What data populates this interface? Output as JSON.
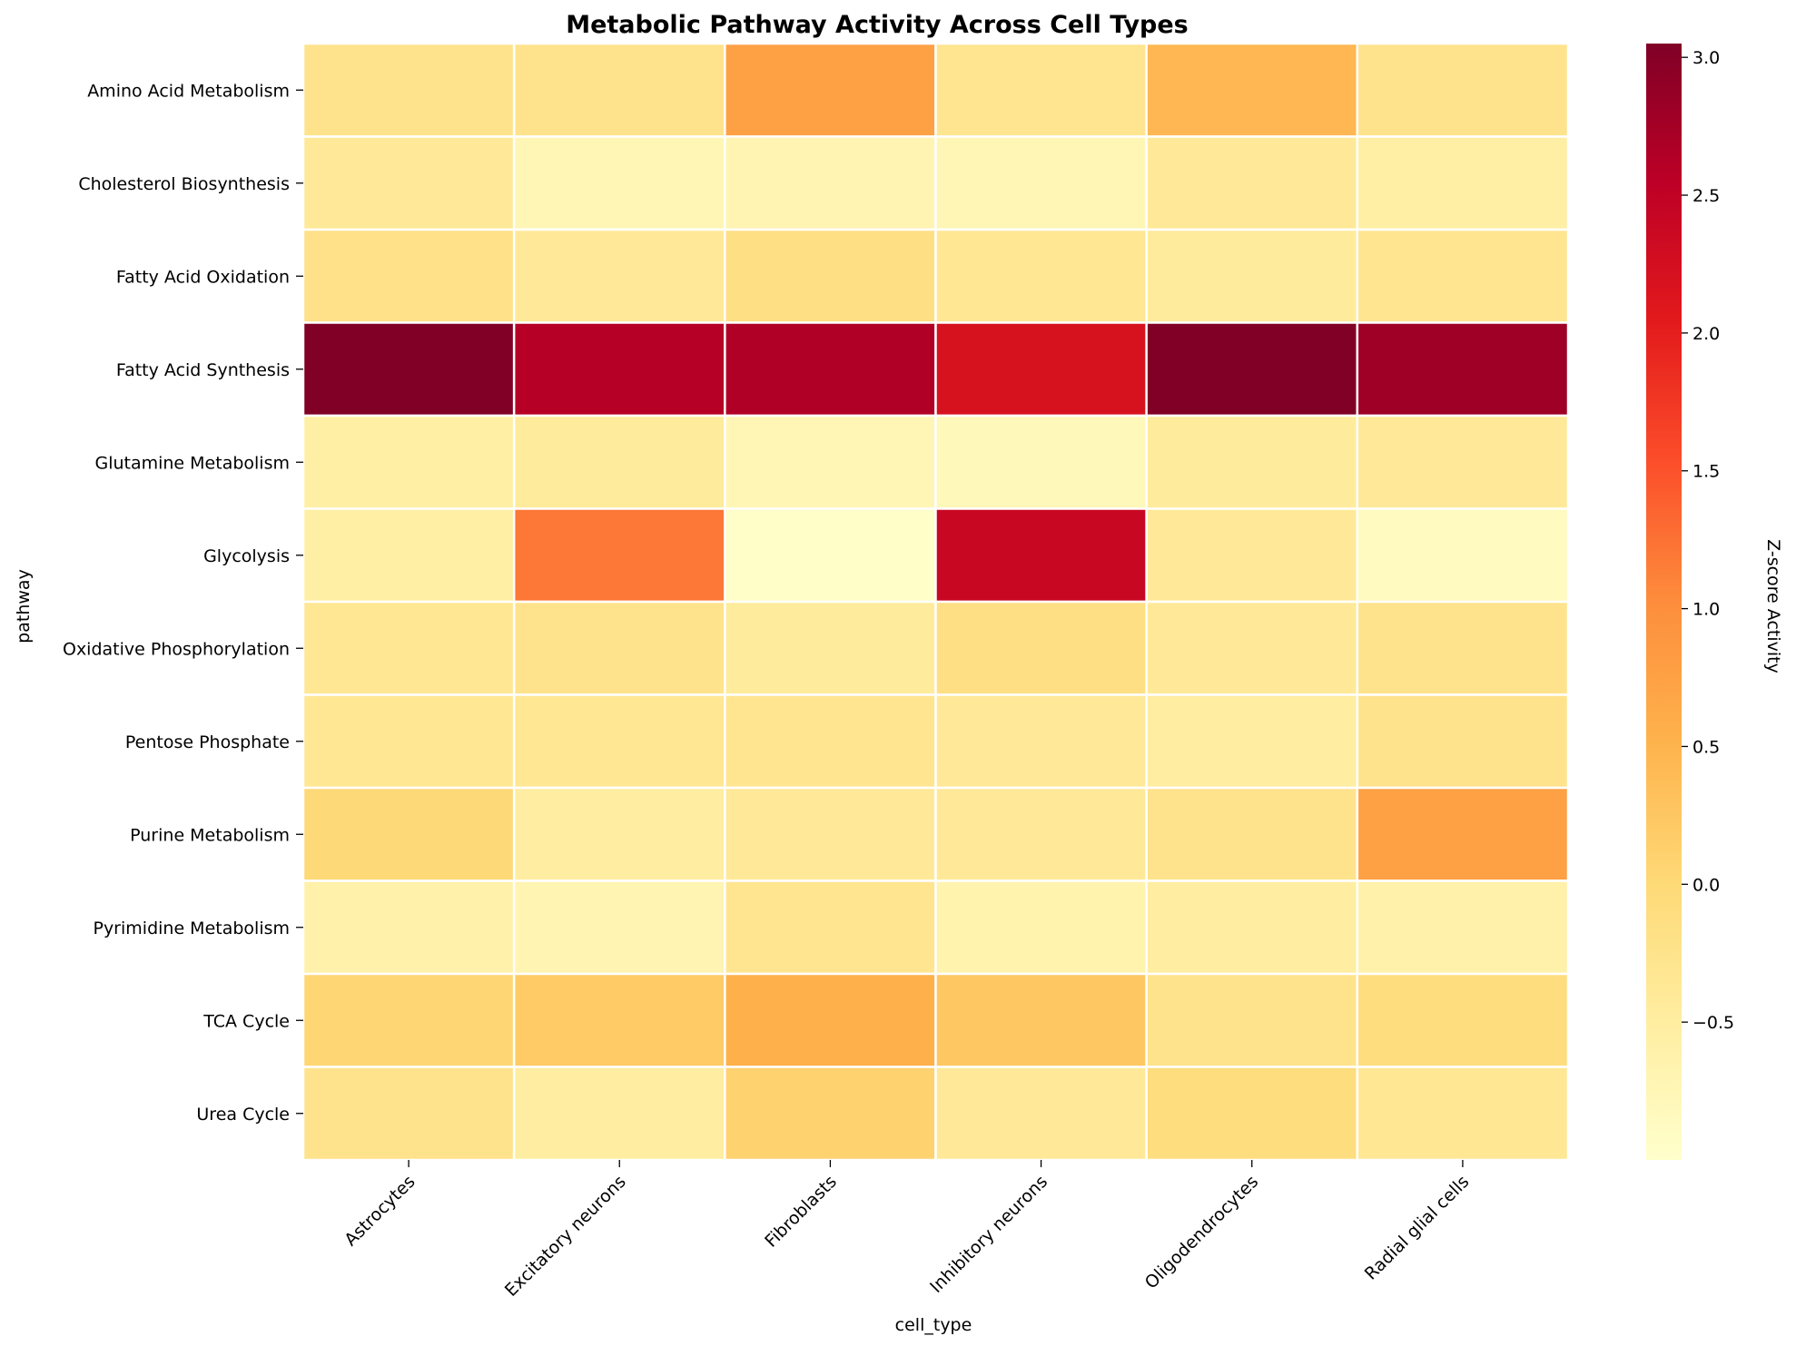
{
  "chart_data": {
    "type": "heatmap",
    "title": "Metabolic Pathway Activity Across Cell Types",
    "xlabel": "cell_type",
    "ylabel": "pathway",
    "colorbar_label": "Z-score Activity",
    "colormap": "YlOrRd",
    "color_range": [
      -1.0,
      3.05
    ],
    "colorbar_ticks": [
      3.0,
      2.5,
      2.0,
      1.5,
      1.0,
      0.5,
      0.0,
      -0.5
    ],
    "colorbar_tick_labels": [
      "3.0",
      "2.5",
      "2.0",
      "1.5",
      "1.0",
      "0.5",
      "0.0",
      "−0.5"
    ],
    "x_categories": [
      "Astrocytes",
      "Excitatory neurons",
      "Fibroblasts",
      "Inhibitory neurons",
      "Oligodendrocytes",
      "Radial glial cells"
    ],
    "y_categories": [
      "Amino Acid Metabolism",
      "Cholesterol Biosynthesis",
      "Fatty Acid Oxidation",
      "Fatty Acid Synthesis",
      "Glutamine Metabolism",
      "Glycolysis",
      "Oxidative Phosphorylation",
      "Pentose Phosphate",
      "Purine Metabolism",
      "Pyrimidine Metabolism",
      "TCA Cycle",
      "Urea Cycle"
    ],
    "values": [
      [
        -0.25,
        -0.25,
        0.75,
        -0.3,
        0.45,
        -0.25
      ],
      [
        -0.4,
        -0.75,
        -0.7,
        -0.75,
        -0.4,
        -0.55
      ],
      [
        -0.2,
        -0.4,
        -0.15,
        -0.35,
        -0.45,
        -0.3
      ],
      [
        3.05,
        2.6,
        2.65,
        2.2,
        3.05,
        2.8
      ],
      [
        -0.55,
        -0.45,
        -0.75,
        -0.8,
        -0.45,
        -0.4
      ],
      [
        -0.55,
        1.2,
        -0.95,
        2.4,
        -0.4,
        -0.85
      ],
      [
        -0.35,
        -0.25,
        -0.45,
        -0.15,
        -0.4,
        -0.25
      ],
      [
        -0.35,
        -0.35,
        -0.3,
        -0.4,
        -0.5,
        -0.25
      ],
      [
        0.0,
        -0.5,
        -0.4,
        -0.4,
        -0.25,
        0.75
      ],
      [
        -0.6,
        -0.7,
        -0.3,
        -0.65,
        -0.5,
        -0.6
      ],
      [
        0.05,
        0.2,
        0.55,
        0.25,
        -0.25,
        -0.1
      ],
      [
        -0.25,
        -0.5,
        0.1,
        -0.4,
        -0.1,
        -0.35
      ]
    ],
    "grid": false,
    "cell_borders": true
  }
}
